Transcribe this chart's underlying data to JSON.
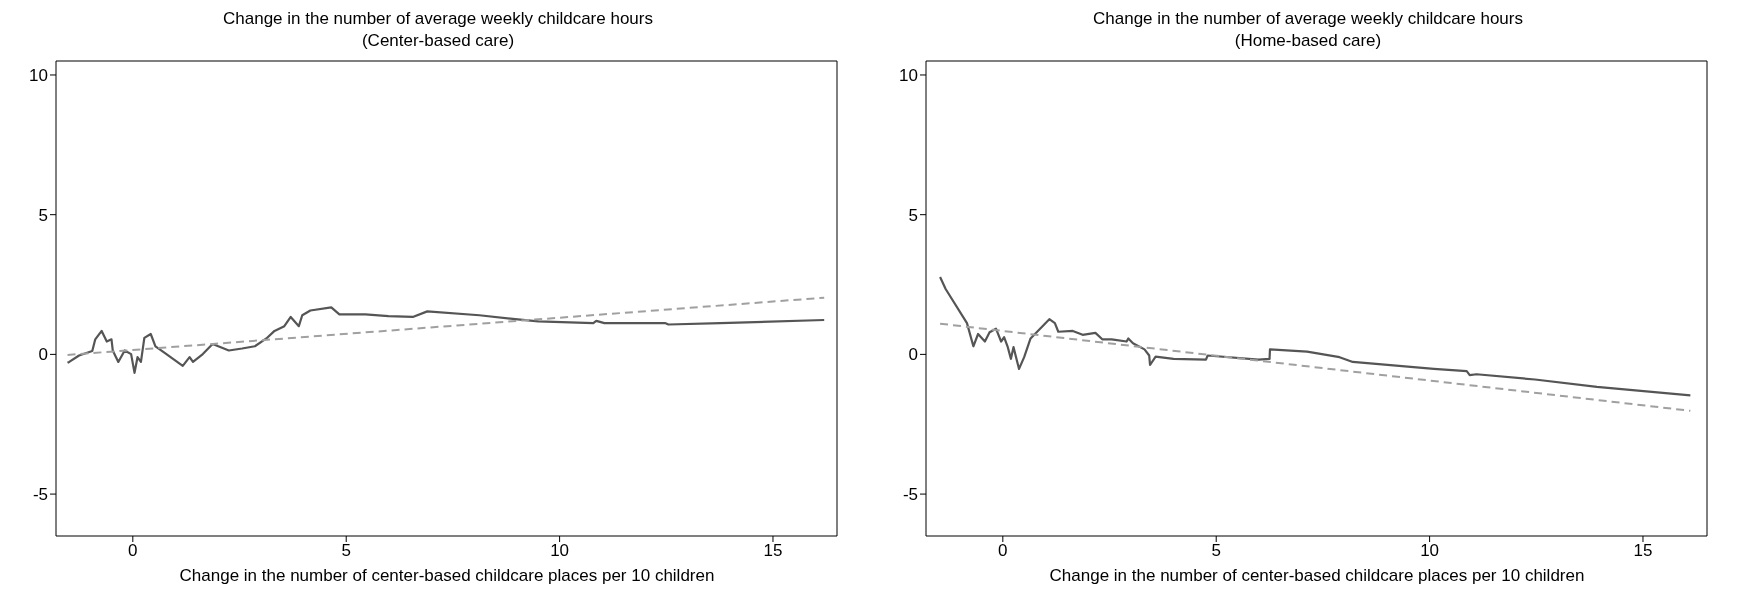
{
  "chart_data": [
    {
      "type": "line",
      "title": "Change in the number of average weekly childcare hours",
      "subtitle": "(Center-based care)",
      "xlabel": "Change in the number of center-based childcare places per 10 children",
      "xlim": [
        -1.8,
        16.5
      ],
      "xticks": [
        0,
        5,
        10,
        15
      ],
      "ylim": [
        -6.5,
        10.5
      ],
      "yticks": [
        -5,
        0,
        5,
        10
      ],
      "marker": "none",
      "series": [
        {
          "color": "#555555",
          "line_style": "solid",
          "x": [
            -1.53,
            -1.49,
            -1.26,
            -0.95,
            -0.88,
            -0.73,
            -0.61,
            -0.5,
            -0.47,
            -0.34,
            -0.19,
            -0.04,
            0.04,
            0.11,
            0.19,
            0.27,
            0.42,
            0.53,
            0.73,
            1.17,
            1.33,
            1.41,
            1.64,
            1.87,
            2.25,
            2.56,
            2.86,
            3.13,
            3.32,
            3.55,
            3.7,
            3.89,
            3.97,
            4.16,
            4.65,
            4.84,
            5.45,
            5.99,
            6.56,
            6.9,
            8.12,
            8.96,
            9.5,
            10.79,
            10.86,
            11.05,
            12.47,
            12.55,
            13.77,
            16.2
          ],
          "values": [
            -0.3,
            -0.27,
            -0.04,
            0.12,
            0.54,
            0.84,
            0.46,
            0.54,
            0.14,
            -0.27,
            0.14,
            0.01,
            -0.66,
            -0.1,
            -0.27,
            0.59,
            0.73,
            0.29,
            0.07,
            -0.41,
            -0.1,
            -0.27,
            0.01,
            0.37,
            0.14,
            0.21,
            0.29,
            0.57,
            0.84,
            1.01,
            1.34,
            1.01,
            1.4,
            1.57,
            1.68,
            1.43,
            1.43,
            1.37,
            1.34,
            1.54,
            1.4,
            1.26,
            1.18,
            1.12,
            1.2,
            1.12,
            1.12,
            1.07,
            1.12,
            1.23
          ]
        },
        {
          "color": "#a0a0a0",
          "line_style": "dashed",
          "x": [
            -1.53,
            16.2
          ],
          "values": [
            -0.02,
            2.03
          ]
        }
      ]
    },
    {
      "type": "line",
      "title": "Change in the number of average weekly childcare hours",
      "subtitle": "(Home-based care)",
      "xlabel": "Change in the number of center-based childcare places per 10 children",
      "xlim": [
        -1.8,
        16.5
      ],
      "xticks": [
        0,
        5,
        10,
        15
      ],
      "ylim": [
        -6.5,
        10.5
      ],
      "yticks": [
        -5,
        0,
        5,
        10
      ],
      "marker": "none",
      "series": [
        {
          "color": "#555555",
          "line_style": "solid",
          "x": [
            -1.47,
            -1.34,
            -0.84,
            -0.69,
            -0.58,
            -0.42,
            -0.31,
            -0.16,
            -0.04,
            0.03,
            0.11,
            0.19,
            0.25,
            0.38,
            0.5,
            0.65,
            1.09,
            1.22,
            1.3,
            1.64,
            1.87,
            2.17,
            2.33,
            2.55,
            2.9,
            2.94,
            3.05,
            3.32,
            3.43,
            3.45,
            3.58,
            4.0,
            4.76,
            4.8,
            5.99,
            6.25,
            6.26,
            7.13,
            7.89,
            8.2,
            10.1,
            10.87,
            10.94,
            11.1,
            12.47,
            13.92,
            16.11
          ],
          "values": [
            2.77,
            2.34,
            1.12,
            0.29,
            0.73,
            0.46,
            0.79,
            0.92,
            0.46,
            0.62,
            0.29,
            -0.16,
            0.26,
            -0.52,
            -0.1,
            0.57,
            1.26,
            1.12,
            0.81,
            0.84,
            0.7,
            0.77,
            0.54,
            0.54,
            0.46,
            0.57,
            0.4,
            0.18,
            -0.04,
            -0.38,
            -0.08,
            -0.16,
            -0.19,
            -0.04,
            -0.19,
            -0.16,
            0.18,
            0.1,
            -0.1,
            -0.27,
            -0.52,
            -0.6,
            -0.74,
            -0.71,
            -0.9,
            -1.16,
            -1.47
          ]
        },
        {
          "color": "#a0a0a0",
          "line_style": "dashed",
          "x": [
            -1.47,
            16.11
          ],
          "values": [
            1.1,
            -2.02
          ]
        }
      ]
    }
  ]
}
